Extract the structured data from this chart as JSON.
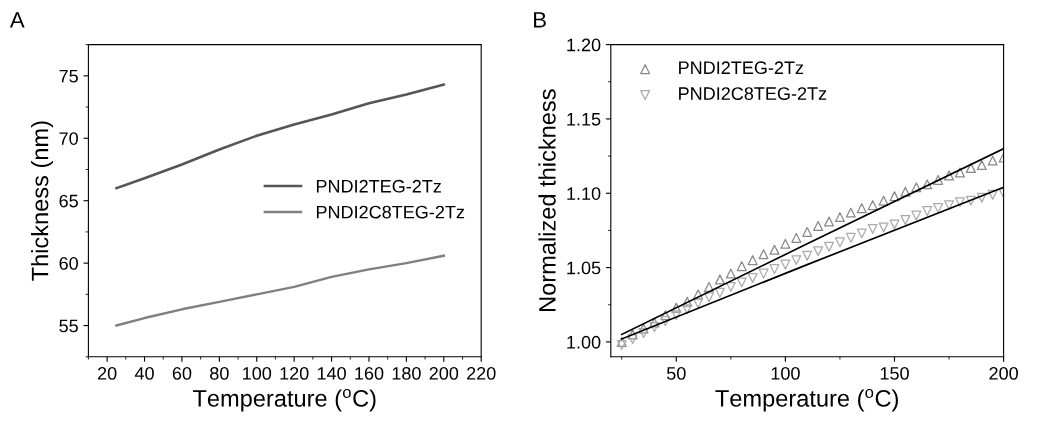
{
  "chart_data": [
    {
      "type": "line",
      "xlabel": "Temperature ($^{o}$C)",
      "ylabel": "Thickness (nm)",
      "annotations": [
        "A"
      ],
      "x": [
        25,
        40,
        60,
        80,
        100,
        120,
        140,
        160,
        180,
        200
      ],
      "series": [
        {
          "name": "PNDI2TEG-2Tz",
          "color": "#555555",
          "values": [
            66.0,
            66.8,
            67.9,
            69.1,
            70.2,
            71.1,
            71.9,
            72.8,
            73.5,
            74.3
          ]
        },
        {
          "name": "PNDI2C8TEG-2Tz",
          "color": "#808080",
          "values": [
            55.0,
            55.6,
            56.3,
            56.9,
            57.5,
            58.1,
            58.9,
            59.5,
            60.0,
            60.6
          ]
        }
      ],
      "xlim": [
        10,
        220
      ],
      "xticks": [
        20,
        40,
        60,
        80,
        100,
        120,
        140,
        160,
        180,
        200,
        220
      ],
      "ylim": [
        52.5,
        77.5
      ],
      "yticks": [
        55,
        60,
        65,
        70,
        75
      ],
      "grid": false,
      "legend": "right",
      "marker": "none",
      "line_style": "solid"
    },
    {
      "type": "scatter",
      "xlabel": "Temperature ($^{o}$C)",
      "ylabel": "Normalized thickness",
      "annotations": [
        "B"
      ],
      "x": [
        25,
        30,
        35,
        40,
        45,
        50,
        55,
        60,
        65,
        70,
        75,
        80,
        85,
        90,
        95,
        100,
        105,
        110,
        115,
        120,
        125,
        130,
        135,
        140,
        145,
        150,
        155,
        160,
        165,
        170,
        175,
        180,
        185,
        190,
        195,
        200
      ],
      "series": [
        {
          "name": "PNDI2TEG-2Tz",
          "color": "#888888",
          "marker": "triangle",
          "values": [
            1.0,
            1.005,
            1.009,
            1.013,
            1.018,
            1.023,
            1.027,
            1.032,
            1.037,
            1.042,
            1.046,
            1.051,
            1.055,
            1.059,
            1.062,
            1.066,
            1.07,
            1.074,
            1.078,
            1.081,
            1.084,
            1.087,
            1.09,
            1.092,
            1.095,
            1.098,
            1.101,
            1.104,
            1.106,
            1.109,
            1.112,
            1.114,
            1.117,
            1.119,
            1.122,
            1.124
          ]
        },
        {
          "name": "PNDI2C8TEG-2Tz",
          "color": "#aaaaaa",
          "marker": "triangle_down",
          "values": [
            0.998,
            1.002,
            1.006,
            1.01,
            1.014,
            1.018,
            1.022,
            1.026,
            1.03,
            1.033,
            1.037,
            1.04,
            1.043,
            1.046,
            1.049,
            1.052,
            1.055,
            1.058,
            1.061,
            1.064,
            1.067,
            1.07,
            1.073,
            1.076,
            1.077,
            1.079,
            1.082,
            1.085,
            1.088,
            1.09,
            1.092,
            1.094,
            1.095,
            1.097,
            1.099,
            1.1
          ]
        },
        {
          "type": "line",
          "color": "#000000",
          "x": [
            25,
            110,
            200
          ],
          "values": [
            1.005,
            1.066,
            1.13
          ]
        },
        {
          "type": "line",
          "color": "#000000",
          "x": [
            25,
            110,
            200
          ],
          "values": [
            1.002,
            1.052,
            1.104
          ]
        }
      ],
      "xlim": [
        20,
        200
      ],
      "xticks": [
        50,
        100,
        150,
        200
      ],
      "ylim": [
        0.99,
        1.2
      ],
      "yticks": [
        {
          "value": 1.0,
          "label": "1.00"
        },
        {
          "value": 1.05,
          "label": "1.05"
        },
        {
          "value": 1.1,
          "label": "1.10"
        },
        {
          "value": 1.15,
          "label": "1.15"
        },
        {
          "value": 1.2,
          "label": "1.20"
        }
      ],
      "grid": false,
      "legend": "top left"
    }
  ]
}
